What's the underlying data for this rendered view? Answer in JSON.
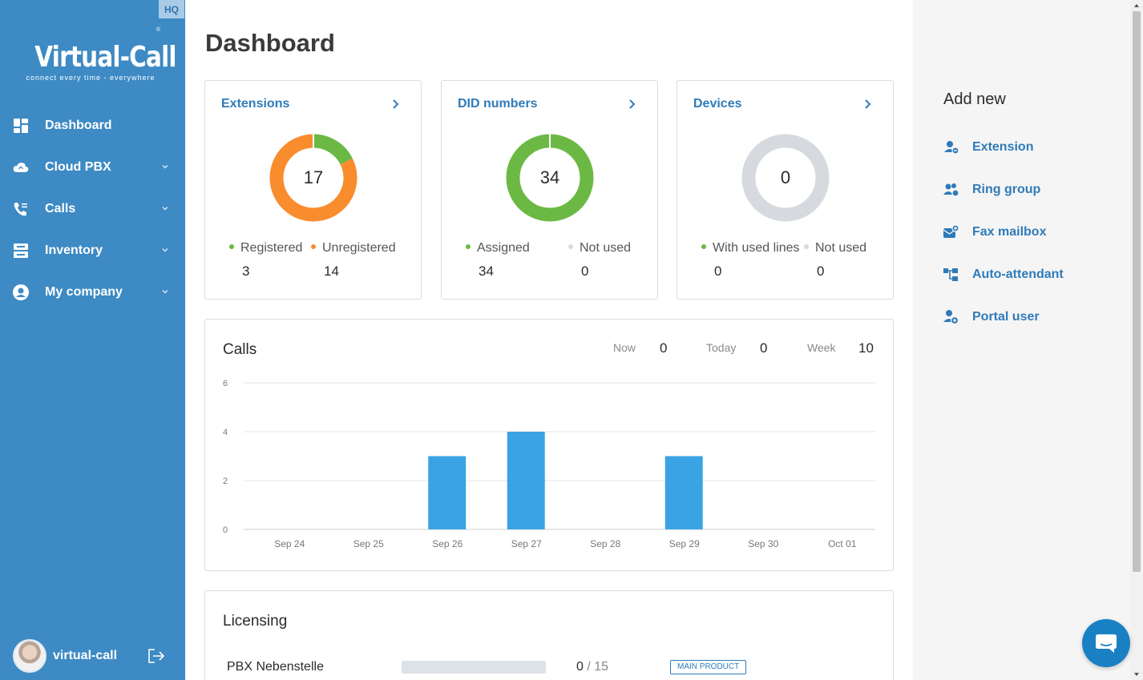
{
  "sidebar": {
    "badge": "HQ",
    "logo": {
      "title": "Virtual-Call",
      "tagline": "connect every time - everywhere",
      "reg": "®"
    },
    "items": [
      {
        "label": "Dashboard",
        "icon": "dashboard-icon"
      },
      {
        "label": "Cloud PBX",
        "icon": "cloud-icon"
      },
      {
        "label": "Calls",
        "icon": "phone-icon"
      },
      {
        "label": "Inventory",
        "icon": "inventory-icon"
      },
      {
        "label": "My company",
        "icon": "user-circle-icon"
      }
    ],
    "user": {
      "name": "virtual-call"
    }
  },
  "main": {
    "title": "Dashboard",
    "cards": {
      "extensions": {
        "title": "Extensions",
        "total": "17",
        "a_label": "Registered",
        "a_value": "3",
        "b_label": "Unregistered",
        "b_value": "14"
      },
      "did": {
        "title": "DID numbers",
        "total": "34",
        "a_label": "Assigned",
        "a_value": "34",
        "b_label": "Not used",
        "b_value": "0"
      },
      "devices": {
        "title": "Devices",
        "total": "0",
        "a_label": "With used lines",
        "a_value": "0",
        "b_label": "Not used",
        "b_value": "0"
      }
    },
    "calls": {
      "title": "Calls",
      "now_label": "Now",
      "now_value": "0",
      "today_label": "Today",
      "today_value": "0",
      "week_label": "Week",
      "week_value": "10"
    },
    "licensing": {
      "title": "Licensing",
      "rows": [
        {
          "name": "PBX Nebenstelle",
          "used": "0",
          "max": "/ 15",
          "tag": "MAIN PRODUCT",
          "fraction": 0
        }
      ]
    }
  },
  "right_panel": {
    "title": "Add new",
    "items": [
      {
        "label": "Extension",
        "icon": "add-user-icon"
      },
      {
        "label": "Ring group",
        "icon": "group-icon"
      },
      {
        "label": "Fax mailbox",
        "icon": "fax-mailbox-icon"
      },
      {
        "label": "Auto-attendant",
        "icon": "flow-icon"
      },
      {
        "label": "Portal user",
        "icon": "portal-user-icon"
      }
    ]
  },
  "colors": {
    "sidebar": "#3d8ac4",
    "accent": "#2f7bb9",
    "green": "#6bb944",
    "orange": "#f98c2d",
    "grey": "#d6dadf",
    "bar": "#3aa3e3"
  },
  "chart_data": {
    "type": "bar",
    "title": "Calls",
    "categories": [
      "Sep 24",
      "Sep 25",
      "Sep 26",
      "Sep 27",
      "Sep 28",
      "Sep 29",
      "Sep 30",
      "Oct 01"
    ],
    "values": [
      0,
      0,
      3,
      4,
      0,
      3,
      0,
      0
    ],
    "yticks": [
      0,
      2,
      4,
      6
    ],
    "ylim": [
      0,
      6
    ],
    "grid": true
  },
  "donut_data": {
    "extensions": [
      3,
      14
    ],
    "did": [
      34,
      0
    ],
    "devices": [
      0,
      0
    ]
  }
}
